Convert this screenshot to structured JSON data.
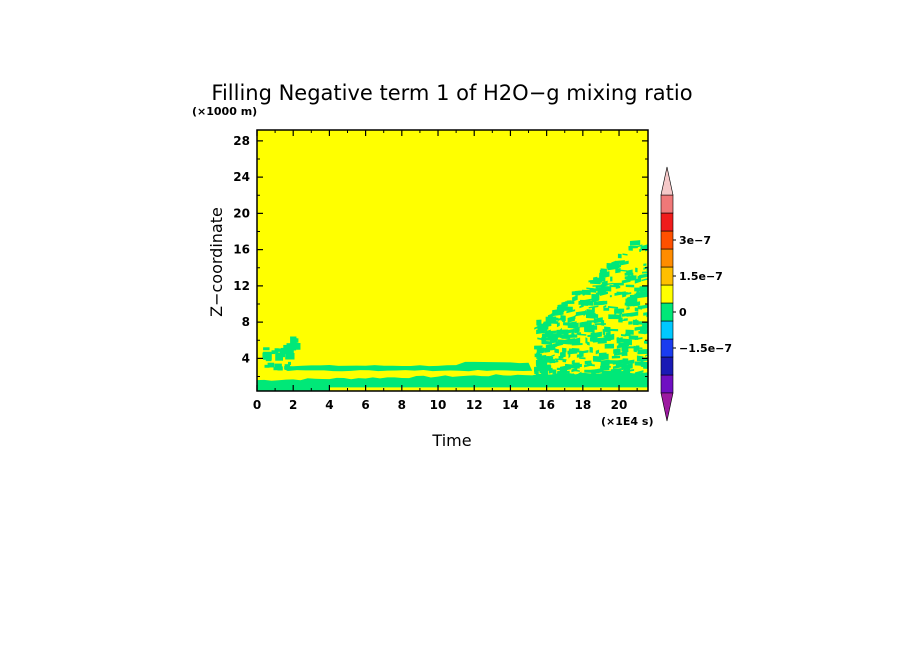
{
  "chart_data": {
    "type": "heatmap",
    "title": "Filling Negative term 1 of H2O−g mixing ratio",
    "xlabel": "Time",
    "ylabel": "Z−coordinate",
    "x_unit": "(×1E4 s)",
    "y_unit": "(×1000 m)",
    "xlim": [
      0,
      21.6
    ],
    "ylim": [
      0.4,
      29.2
    ],
    "x_ticks": [
      "0",
      "2",
      "4",
      "6",
      "8",
      "10",
      "12",
      "14",
      "16",
      "18",
      "20"
    ],
    "y_ticks": [
      "4",
      "8",
      "12",
      "16",
      "20",
      "24",
      "28"
    ],
    "background_level": "0 to 0.75e-7 (yellow)",
    "regions": [
      {
        "label": "lower band",
        "x_range": [
          0,
          21.6
        ],
        "z_range": [
          0.8,
          1.9
        ],
        "level": "-0.75e-7 to 0"
      },
      {
        "label": "upper band",
        "x_range": [
          1.5,
          15.0
        ],
        "z_range": [
          2.7,
          3.4
        ],
        "level": "-0.75e-7 to 0"
      },
      {
        "label": "convective patches",
        "x_range": [
          15.5,
          21.6
        ],
        "z_range": [
          1.5,
          16.5
        ],
        "level": "-0.75e-7 to 0"
      },
      {
        "label": "early patch",
        "x_range": [
          0.2,
          2.0
        ],
        "z_range": [
          2.5,
          7.0
        ],
        "level": "-0.75e-7 to 0"
      }
    ],
    "colorbar": {
      "labels": [
        "3e−7",
        "1.5e−7",
        "0",
        "−1.5e−7"
      ],
      "levels": [
        -3.75e-07,
        -3e-07,
        -2.25e-07,
        -1.5e-07,
        -7.5e-08,
        0,
        7.5e-08,
        1.5e-07,
        2.25e-07,
        3e-07,
        3.75e-07
      ],
      "colors": [
        "#9c1aa0",
        "#6f0fc2",
        "#1a1ab5",
        "#1a3cf0",
        "#00c8ff",
        "#00e878",
        "#ffff00",
        "#ffbf00",
        "#ff8c00",
        "#ff5000",
        "#f01c1c",
        "#f07878",
        "#f5c8c8"
      ]
    }
  }
}
